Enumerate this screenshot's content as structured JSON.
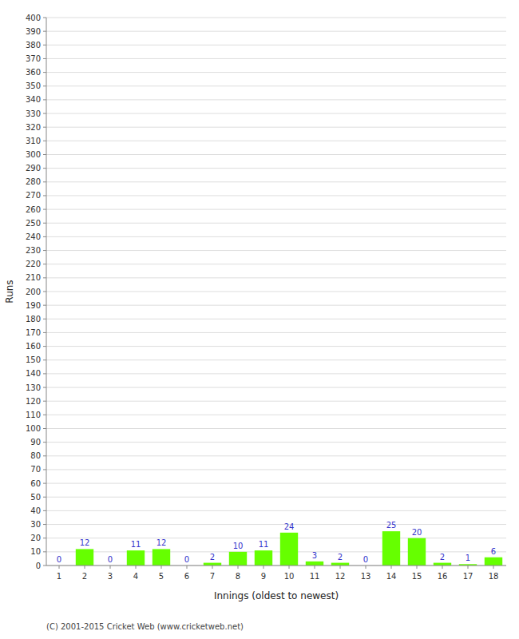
{
  "chart_data": {
    "type": "bar",
    "categories": [
      "1",
      "2",
      "3",
      "4",
      "5",
      "6",
      "7",
      "8",
      "9",
      "10",
      "11",
      "12",
      "13",
      "14",
      "15",
      "16",
      "17",
      "18"
    ],
    "values": [
      0,
      12,
      0,
      11,
      12,
      0,
      2,
      10,
      11,
      24,
      3,
      2,
      0,
      25,
      20,
      2,
      1,
      6
    ],
    "color": "#66ff00",
    "xlabel": "Innings (oldest to newest)",
    "ylabel": "Runs",
    "ylim": [
      0,
      400
    ],
    "yticks": [
      0,
      10,
      20,
      30,
      40,
      50,
      60,
      70,
      80,
      90,
      100,
      110,
      120,
      130,
      140,
      150,
      160,
      170,
      180,
      190,
      200,
      210,
      220,
      230,
      240,
      250,
      260,
      270,
      280,
      290,
      300,
      310,
      320,
      330,
      340,
      350,
      360,
      370,
      380,
      390,
      400
    ],
    "grid": true,
    "data_labels": true,
    "annotations": [
      "(C) 2001-2015 Cricket Web (www.cricketweb.net)"
    ]
  }
}
